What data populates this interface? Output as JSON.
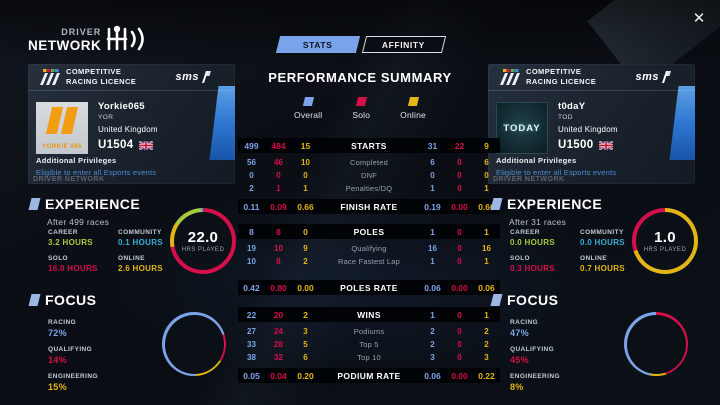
{
  "app": {
    "logo_top": "DRIVER",
    "logo_bottom": "NETWORK",
    "close": "✕"
  },
  "tabs": [
    {
      "label": "STATS",
      "active": true
    },
    {
      "label": "AFFINITY",
      "active": false
    }
  ],
  "summary": {
    "title": "PERFORMANCE SUMMARY"
  },
  "legend": [
    {
      "label": "Overall",
      "color": "#7ba3e8"
    },
    {
      "label": "Solo",
      "color": "#d40f4a"
    },
    {
      "label": "Online",
      "color": "#e3b515"
    }
  ],
  "table": {
    "rows": [
      {
        "type": "band",
        "label": "STARTS",
        "left": [
          "499",
          "484",
          "15"
        ],
        "right": [
          "31",
          "22",
          "9"
        ]
      },
      {
        "type": "row",
        "label": "Completed",
        "left": [
          "56",
          "46",
          "10"
        ],
        "right": [
          "6",
          "0",
          "6"
        ],
        "gap": 3
      },
      {
        "type": "row",
        "label": "DNF",
        "left": [
          "0",
          "0",
          "0"
        ],
        "right": [
          "0",
          "0",
          "0"
        ]
      },
      {
        "type": "row",
        "label": "Penalties/DQ",
        "left": [
          "2",
          "1",
          "1"
        ],
        "right": [
          "1",
          "0",
          "1"
        ]
      },
      {
        "type": "band",
        "label": "FINISH RATE",
        "left": [
          "0.11",
          "0.09",
          "0.66"
        ],
        "right": [
          "0.19",
          "0.00",
          "0.66"
        ],
        "gap": 4
      },
      {
        "type": "band",
        "label": "POLES",
        "left": [
          "8",
          "8",
          "0"
        ],
        "right": [
          "1",
          "0",
          "1"
        ],
        "gap": 10
      },
      {
        "type": "row",
        "label": "Qualifying",
        "left": [
          "19",
          "10",
          "9"
        ],
        "right": [
          "16",
          "0",
          "16"
        ],
        "gap": 3
      },
      {
        "type": "row",
        "label": "Race Fastest Lap",
        "left": [
          "10",
          "8",
          "2"
        ],
        "right": [
          "1",
          "0",
          "1"
        ]
      },
      {
        "type": "band",
        "label": "POLES RATE",
        "left": [
          "0.42",
          "0.80",
          "0.00"
        ],
        "right": [
          "0.06",
          "0.00",
          "0.06"
        ],
        "gap": 12
      },
      {
        "type": "band",
        "label": "WINS",
        "left": [
          "22",
          "20",
          "2"
        ],
        "right": [
          "1",
          "0",
          "1"
        ],
        "gap": 12
      },
      {
        "type": "row",
        "label": "Podiums",
        "left": [
          "27",
          "24",
          "3"
        ],
        "right": [
          "2",
          "0",
          "2"
        ],
        "gap": 3
      },
      {
        "type": "row",
        "label": "Top 5",
        "left": [
          "33",
          "28",
          "5"
        ],
        "right": [
          "2",
          "0",
          "2"
        ]
      },
      {
        "type": "row",
        "label": "Top 10",
        "left": [
          "38",
          "32",
          "6"
        ],
        "right": [
          "3",
          "0",
          "3"
        ]
      },
      {
        "type": "band",
        "label": "PODIUM RATE",
        "left": [
          "0.05",
          "0.04",
          "0.20"
        ],
        "right": [
          "0.06",
          "0.00",
          "0.22"
        ],
        "gap": 4
      }
    ]
  },
  "licence": {
    "line1": "COMPETITIVE",
    "line2": "RACING LICENCE",
    "brand": "sms",
    "privileges_title": "Additional Privileges",
    "privileges_text": "Eligible to enter all Esports events",
    "watermark": "DRIVER NETWORK"
  },
  "players": {
    "left": {
      "name": "Yorkie065",
      "tag": "YOR",
      "country": "United Kingdom",
      "rating": "U1504",
      "avatar": "YORKIE 065",
      "experience": {
        "title": "EXPERIENCE",
        "subtitle": "After 499 races",
        "total": "22.0",
        "total_label": "HRS PLAYED",
        "stats": [
          {
            "label": "CAREER",
            "value": "3.2 HOURS",
            "color": "#a7c93e"
          },
          {
            "label": "COMMUNITY",
            "value": "0.1 HOURS",
            "color": "#38aed6"
          },
          {
            "label": "SOLO",
            "value": "16.0 HOURS",
            "color": "#d40f4a"
          },
          {
            "label": "ONLINE",
            "value": "2.6 HOURS",
            "color": "#e3b515"
          }
        ],
        "ring": [
          {
            "color": "#d40f4a",
            "pct": 72
          },
          {
            "color": "#e3b515",
            "pct": 12
          },
          {
            "color": "#a7c93e",
            "pct": 15
          },
          {
            "color": "#38aed6",
            "pct": 1
          }
        ]
      },
      "focus": {
        "title": "FOCUS",
        "stats": [
          {
            "label": "RACING",
            "value": "72%",
            "color": "#7ba3e8"
          },
          {
            "label": "QUALIFYING",
            "value": "14%",
            "color": "#d40f4a"
          },
          {
            "label": "ENGINEERING",
            "value": "15%",
            "color": "#e3b515"
          }
        ],
        "ring": [
          {
            "color": "#7ba3e8",
            "pct": 20
          },
          {
            "color": "#d40f4a",
            "pct": 14
          },
          {
            "color": "#e3b515",
            "pct": 15
          },
          {
            "color": "#7ba3e8",
            "pct": 51
          }
        ]
      }
    },
    "right": {
      "name": "t0daY",
      "tag": "TOD",
      "country": "United Kingdom",
      "rating": "U1500",
      "avatar": "TODAY",
      "experience": {
        "title": "EXPERIENCE",
        "subtitle": "After 31 races",
        "total": "1.0",
        "total_label": "HRS PLAYED",
        "stats": [
          {
            "label": "CAREER",
            "value": "0.0 HOURS",
            "color": "#a7c93e"
          },
          {
            "label": "COMMUNITY",
            "value": "0.0 HOURS",
            "color": "#38aed6"
          },
          {
            "label": "SOLO",
            "value": "0.3 HOURS",
            "color": "#d40f4a"
          },
          {
            "label": "ONLINE",
            "value": "0.7 HOURS",
            "color": "#e3b515"
          }
        ],
        "ring": [
          {
            "color": "#e3b515",
            "pct": 70
          },
          {
            "color": "#d40f4a",
            "pct": 30
          }
        ]
      },
      "focus": {
        "title": "FOCUS",
        "stats": [
          {
            "label": "RACING",
            "value": "47%",
            "color": "#7ba3e8"
          },
          {
            "label": "QUALIFYING",
            "value": "45%",
            "color": "#d40f4a"
          },
          {
            "label": "ENGINEERING",
            "value": "8%",
            "color": "#e3b515"
          }
        ],
        "ring": [
          {
            "color": "#d40f4a",
            "pct": 45
          },
          {
            "color": "#e3b515",
            "pct": 8
          },
          {
            "color": "#7ba3e8",
            "pct": 47
          }
        ]
      }
    }
  }
}
